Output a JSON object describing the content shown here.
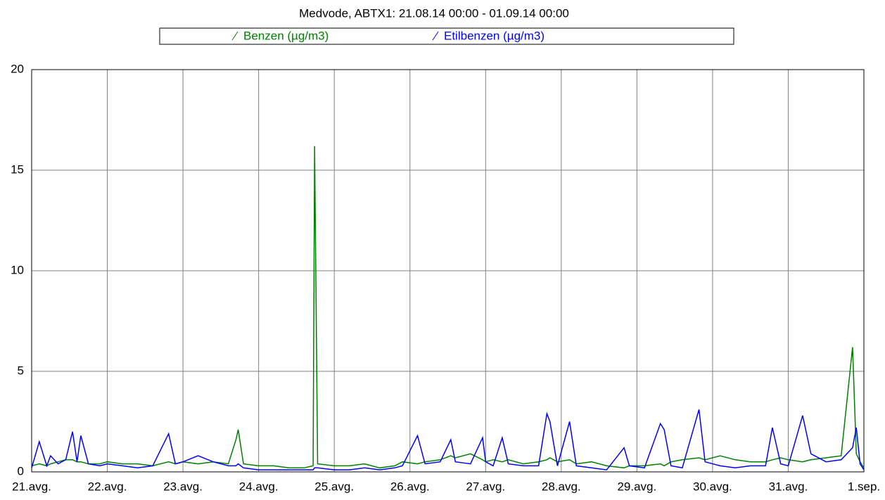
{
  "chart_data": {
    "type": "line",
    "title": "Medvode, ABTX1: 21.08.14 00:00 - 01.09.14 00:00",
    "x": [
      0,
      0.1,
      0.2,
      0.25,
      0.35,
      0.45,
      0.54,
      0.6,
      0.65,
      0.75,
      0.9,
      1.0,
      1.2,
      1.4,
      1.6,
      1.81,
      1.9,
      2.0,
      2.2,
      2.4,
      2.6,
      2.7,
      2.73,
      2.8,
      3.0,
      3.2,
      3.4,
      3.6,
      3.72,
      3.74,
      3.78,
      4.0,
      4.2,
      4.4,
      4.6,
      4.8,
      4.9,
      5.1,
      5.2,
      5.4,
      5.54,
      5.6,
      5.8,
      5.96,
      6.0,
      6.1,
      6.22,
      6.3,
      6.5,
      6.7,
      6.81,
      6.85,
      6.95,
      7.11,
      7.2,
      7.4,
      7.6,
      7.83,
      7.9,
      8.1,
      8.31,
      8.36,
      8.45,
      8.6,
      8.82,
      8.9,
      9.1,
      9.3,
      9.5,
      9.7,
      9.79,
      9.9,
      10.0,
      10.19,
      10.3,
      10.5,
      10.7,
      10.85,
      10.9,
      10.95,
      11.0
    ],
    "series": [
      {
        "name": "Benzen (µg/m3)",
        "color": "#008000",
        "values": [
          0.3,
          0.4,
          0.3,
          0.4,
          0.5,
          0.6,
          0.6,
          0.5,
          0.5,
          0.4,
          0.4,
          0.5,
          0.4,
          0.4,
          0.3,
          0.5,
          0.4,
          0.5,
          0.4,
          0.5,
          0.4,
          1.6,
          2.1,
          0.4,
          0.3,
          0.3,
          0.2,
          0.2,
          0.3,
          16.2,
          0.4,
          0.3,
          0.3,
          0.4,
          0.2,
          0.3,
          0.5,
          0.4,
          0.5,
          0.6,
          0.8,
          0.7,
          0.9,
          0.6,
          0.5,
          0.6,
          0.5,
          0.6,
          0.4,
          0.5,
          0.6,
          0.7,
          0.5,
          0.6,
          0.4,
          0.5,
          0.3,
          0.2,
          0.3,
          0.3,
          0.4,
          0.3,
          0.5,
          0.6,
          0.7,
          0.6,
          0.8,
          0.6,
          0.5,
          0.5,
          0.6,
          0.7,
          0.6,
          0.5,
          0.6,
          0.7,
          0.8,
          6.2,
          0.9,
          0.5,
          0.2
        ]
      },
      {
        "name": "Etilbenzen (µg/m3)",
        "color": "#0000ff",
        "values": [
          0.2,
          1.5,
          0.3,
          0.8,
          0.4,
          0.6,
          2.0,
          0.5,
          1.8,
          0.4,
          0.3,
          0.4,
          0.3,
          0.2,
          0.3,
          1.9,
          0.4,
          0.5,
          0.8,
          0.5,
          0.3,
          0.3,
          0.4,
          0.2,
          0.1,
          0.1,
          0.1,
          0.1,
          0.1,
          0.2,
          0.2,
          0.1,
          0.1,
          0.2,
          0.1,
          0.2,
          0.3,
          1.8,
          0.4,
          0.5,
          1.6,
          0.5,
          0.4,
          1.7,
          0.5,
          0.3,
          1.7,
          0.4,
          0.3,
          0.3,
          2.9,
          2.5,
          0.3,
          2.5,
          0.3,
          0.2,
          0.1,
          1.2,
          0.3,
          0.2,
          2.4,
          2.1,
          0.3,
          0.2,
          3.1,
          0.5,
          0.3,
          0.2,
          0.3,
          0.3,
          2.2,
          0.4,
          0.3,
          2.8,
          0.9,
          0.5,
          0.6,
          1.2,
          2.2,
          0.4,
          0.1
        ]
      }
    ],
    "xlim": [
      0,
      11
    ],
    "xticks": [
      {
        "value": 0,
        "label": "21.avg."
      },
      {
        "value": 1,
        "label": "22.avg."
      },
      {
        "value": 2,
        "label": "23.avg."
      },
      {
        "value": 3,
        "label": "24.avg."
      },
      {
        "value": 4,
        "label": "25.avg."
      },
      {
        "value": 5,
        "label": "26.avg."
      },
      {
        "value": 6,
        "label": "27.avg."
      },
      {
        "value": 7,
        "label": "28.avg."
      },
      {
        "value": 8,
        "label": "29.avg."
      },
      {
        "value": 9,
        "label": "30.avg."
      },
      {
        "value": 10,
        "label": "31.avg."
      },
      {
        "value": 11,
        "label": "1.sep."
      }
    ],
    "ylim": [
      0,
      20
    ],
    "yticks": [
      0,
      5,
      10,
      15,
      20
    ],
    "grid": true
  }
}
